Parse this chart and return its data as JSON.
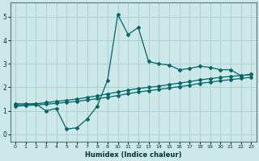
{
  "xlabel": "Humidex (Indice chaleur)",
  "bg_color": "#cce8e8",
  "grid_color": "#aacccc",
  "line_color": "#006666",
  "xlim": [
    -0.5,
    23.5
  ],
  "ylim": [
    -0.3,
    5.6
  ],
  "xticks": [
    0,
    1,
    2,
    3,
    4,
    5,
    6,
    7,
    8,
    9,
    10,
    11,
    12,
    13,
    14,
    15,
    16,
    17,
    18,
    19,
    20,
    21,
    22,
    23
  ],
  "yticks": [
    0,
    1,
    2,
    3,
    4,
    5
  ],
  "line1_x": [
    0,
    1,
    2,
    3,
    4,
    5,
    6,
    7,
    8,
    9,
    10,
    11,
    12,
    13,
    14,
    15,
    16,
    17,
    18,
    19,
    20,
    21,
    22,
    23
  ],
  "line1_y": [
    1.3,
    1.3,
    1.3,
    1.0,
    1.1,
    0.22,
    0.28,
    0.65,
    1.2,
    2.3,
    5.1,
    4.25,
    4.55,
    3.1,
    3.0,
    2.95,
    2.75,
    2.8,
    2.9,
    2.85,
    2.75,
    2.75,
    2.5,
    2.55
  ],
  "line2_x": [
    0,
    1,
    2,
    3,
    4,
    5,
    6,
    7,
    8,
    9,
    10,
    11,
    12,
    13,
    14,
    15,
    16,
    17,
    18,
    19,
    20,
    21,
    22,
    23
  ],
  "line2_y": [
    1.25,
    1.27,
    1.3,
    1.35,
    1.4,
    1.45,
    1.5,
    1.57,
    1.64,
    1.72,
    1.8,
    1.88,
    1.95,
    2.0,
    2.05,
    2.12,
    2.18,
    2.24,
    2.32,
    2.37,
    2.42,
    2.47,
    2.5,
    2.55
  ],
  "line3_x": [
    0,
    1,
    2,
    3,
    4,
    5,
    6,
    7,
    8,
    9,
    10,
    11,
    12,
    13,
    14,
    15,
    16,
    17,
    18,
    19,
    20,
    21,
    22,
    23
  ],
  "line3_y": [
    1.2,
    1.22,
    1.25,
    1.28,
    1.32,
    1.36,
    1.4,
    1.46,
    1.52,
    1.58,
    1.65,
    1.73,
    1.8,
    1.86,
    1.91,
    1.97,
    2.03,
    2.09,
    2.17,
    2.22,
    2.28,
    2.33,
    2.38,
    2.43
  ]
}
